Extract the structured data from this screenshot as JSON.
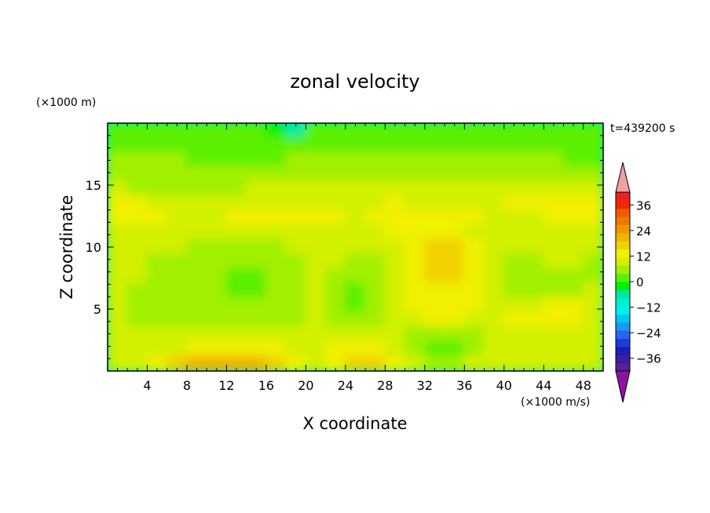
{
  "chart_data": {
    "type": "heatmap",
    "title": "zonal velocity",
    "xlabel": "X coordinate",
    "ylabel": "Z coordinate",
    "x_units": "(×1000 m/s)",
    "y_units": "(×1000 m)",
    "time_label": "t=439200 s",
    "xlim": [
      0,
      50
    ],
    "ylim": [
      0,
      20
    ],
    "xticks": [
      4,
      8,
      12,
      16,
      20,
      24,
      28,
      32,
      36,
      40,
      44,
      48
    ],
    "yticks": [
      5,
      10,
      15
    ],
    "colorbar": {
      "ticks": [
        36,
        24,
        12,
        0,
        -12,
        -24,
        -36
      ],
      "range": [
        -42,
        42
      ],
      "levels": [
        "#5a1e96",
        "#3c1ea0",
        "#1e1eb4",
        "#1e3cdc",
        "#2864f0",
        "#1e96f0",
        "#00c8f0",
        "#00f0f0",
        "#00f0c8",
        "#00e8a0",
        "#00f000",
        "#5af000",
        "#a0f000",
        "#d2f000",
        "#f0f000",
        "#f0d200",
        "#f0b400",
        "#f09600",
        "#f07800",
        "#f05a00",
        "#f02800",
        "#f01e1e"
      ],
      "under_color": "#8c14a0",
      "over_color": "#f0a0a0"
    },
    "grid": [
      [
        1,
        1,
        1,
        1,
        1,
        1,
        1,
        1,
        0,
        -1,
        1,
        1,
        1,
        1,
        1,
        1,
        1,
        1,
        1,
        1,
        1,
        1,
        1,
        1,
        1
      ],
      [
        1,
        1,
        1,
        1,
        1,
        1,
        1,
        1,
        1,
        1,
        1,
        1,
        1,
        1,
        1,
        1,
        1,
        1,
        1,
        1,
        1,
        1,
        1,
        1,
        1
      ],
      [
        2,
        2,
        2,
        2,
        1,
        1,
        1,
        1,
        1,
        2,
        2,
        2,
        2,
        2,
        2,
        2,
        2,
        2,
        2,
        2,
        2,
        2,
        2,
        1,
        1
      ],
      [
        2,
        2,
        2,
        2,
        2,
        2,
        2,
        2,
        2,
        2,
        2,
        2,
        2,
        2,
        2,
        2,
        2,
        2,
        2,
        2,
        2,
        2,
        2,
        2,
        2
      ],
      [
        3,
        2,
        2,
        2,
        2,
        2,
        2,
        3,
        3,
        3,
        3,
        3,
        3,
        3,
        3,
        3,
        3,
        3,
        3,
        3,
        3,
        3,
        3,
        3,
        3
      ],
      [
        4,
        4,
        3,
        3,
        3,
        3,
        3,
        3,
        3,
        3,
        3,
        3,
        3,
        3,
        4,
        3,
        3,
        3,
        3,
        3,
        4,
        4,
        4,
        4,
        4
      ],
      [
        4,
        4,
        4,
        3,
        3,
        3,
        4,
        4,
        4,
        4,
        4,
        4,
        3,
        4,
        4,
        4,
        4,
        4,
        4,
        3,
        3,
        3,
        4,
        4,
        4
      ],
      [
        3,
        3,
        3,
        3,
        3,
        3,
        3,
        3,
        3,
        3,
        3,
        3,
        3,
        3,
        4,
        4,
        4,
        4,
        3,
        3,
        3,
        3,
        3,
        3,
        3
      ],
      [
        3,
        3,
        3,
        3,
        2,
        2,
        2,
        2,
        2,
        3,
        3,
        3,
        3,
        3,
        3,
        4,
        5,
        5,
        4,
        3,
        3,
        3,
        3,
        3,
        3
      ],
      [
        3,
        3,
        2,
        2,
        2,
        2,
        2,
        2,
        2,
        2,
        3,
        3,
        2,
        2,
        3,
        4,
        5,
        5,
        4,
        3,
        2,
        2,
        3,
        3,
        2
      ],
      [
        3,
        3,
        2,
        2,
        2,
        2,
        1,
        1,
        2,
        2,
        3,
        2,
        2,
        2,
        3,
        4,
        5,
        5,
        4,
        3,
        2,
        2,
        2,
        2,
        2
      ],
      [
        3,
        2,
        2,
        2,
        2,
        2,
        1,
        1,
        2,
        2,
        3,
        2,
        1,
        2,
        3,
        4,
        4,
        4,
        4,
        3,
        2,
        2,
        2,
        2,
        3
      ],
      [
        3,
        2,
        2,
        2,
        2,
        2,
        2,
        2,
        2,
        2,
        3,
        2,
        1,
        2,
        3,
        4,
        4,
        4,
        4,
        3,
        3,
        3,
        4,
        4,
        3
      ],
      [
        3,
        2,
        2,
        2,
        2,
        2,
        2,
        2,
        2,
        2,
        3,
        2,
        2,
        2,
        3,
        3,
        4,
        4,
        3,
        3,
        4,
        4,
        4,
        4,
        3
      ],
      [
        3,
        3,
        3,
        3,
        3,
        3,
        3,
        3,
        3,
        3,
        3,
        3,
        3,
        3,
        3,
        2,
        2,
        2,
        2,
        3,
        3,
        3,
        3,
        3,
        3
      ],
      [
        3,
        3,
        3,
        3,
        4,
        4,
        4,
        4,
        4,
        3,
        3,
        4,
        4,
        4,
        3,
        2,
        1,
        1,
        2,
        3,
        3,
        3,
        3,
        3,
        3
      ],
      [
        3,
        3,
        4,
        5,
        6,
        6,
        6,
        6,
        5,
        4,
        3,
        4,
        5,
        5,
        4,
        3,
        2,
        2,
        3,
        3,
        3,
        3,
        3,
        3,
        3
      ]
    ]
  }
}
